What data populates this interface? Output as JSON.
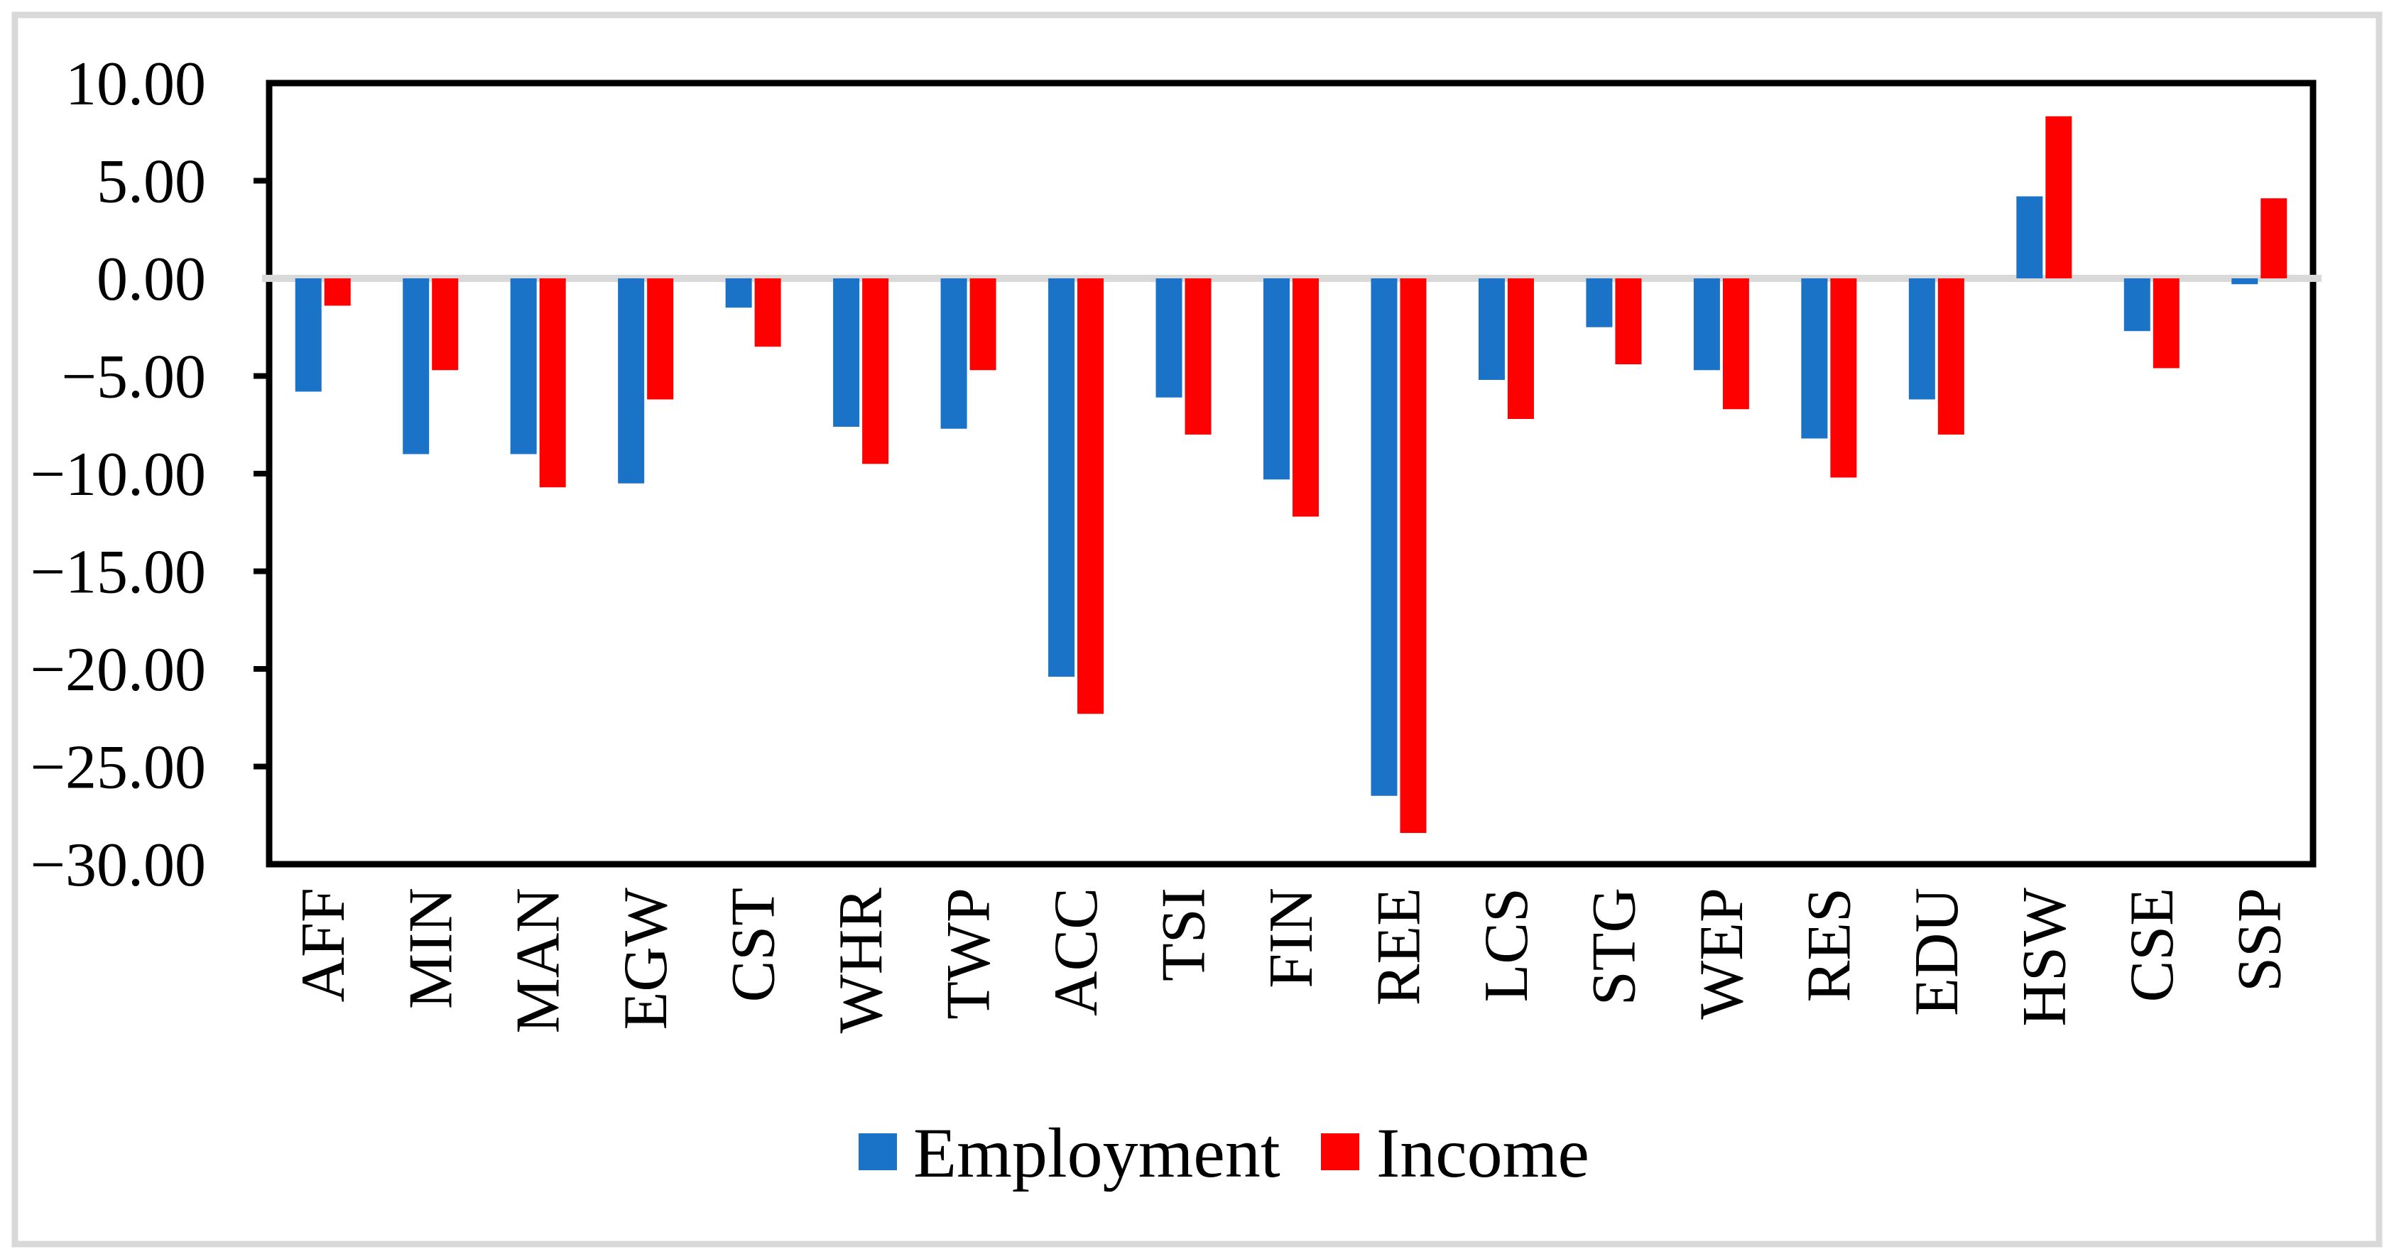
{
  "figure": {
    "background": "#FFFFFF",
    "border_color": "#D9D9D9",
    "axis_color": "#000000",
    "zero_line_color": "#D9D9D9"
  },
  "chart_data": {
    "type": "bar",
    "title": "",
    "xlabel": "",
    "ylabel": "",
    "grid": false,
    "legend_position": "bottom",
    "ylim": [
      -30,
      10
    ],
    "y_tick_step": 5,
    "y_ticks": [
      10,
      5,
      0,
      -5,
      -10,
      -15,
      -20,
      -25,
      -30
    ],
    "y_tick_labels": [
      "10.00",
      "5.00",
      "0.00",
      "−5.00",
      "−10.00",
      "−15.00",
      "−20.00",
      "−25.00",
      "−30.00"
    ],
    "categories": [
      "AFF",
      "MIN",
      "MAN",
      "EGW",
      "CST",
      "WHR",
      "TWP",
      "ACC",
      "TSI",
      "FIN",
      "REE",
      "LCS",
      "STG",
      "WEP",
      "RES",
      "EDU",
      "HSW",
      "CSE",
      "SSP"
    ],
    "series": [
      {
        "name": "Employment",
        "color": "#1B73C8",
        "values": [
          -5.8,
          -9.0,
          -9.0,
          -10.5,
          -1.5,
          -7.6,
          -7.7,
          -20.4,
          -6.1,
          -10.3,
          -26.5,
          -5.2,
          -2.5,
          -4.7,
          -8.2,
          -6.2,
          4.2,
          -2.7,
          -0.3
        ]
      },
      {
        "name": "Income",
        "color": "#FF0000",
        "values": [
          -1.4,
          -4.7,
          -10.7,
          -6.2,
          -3.5,
          -9.5,
          -4.7,
          -22.3,
          -8.0,
          -12.2,
          -28.4,
          -7.2,
          -4.4,
          -6.7,
          -10.2,
          -8.0,
          8.3,
          -4.6,
          4.1
        ]
      }
    ]
  }
}
